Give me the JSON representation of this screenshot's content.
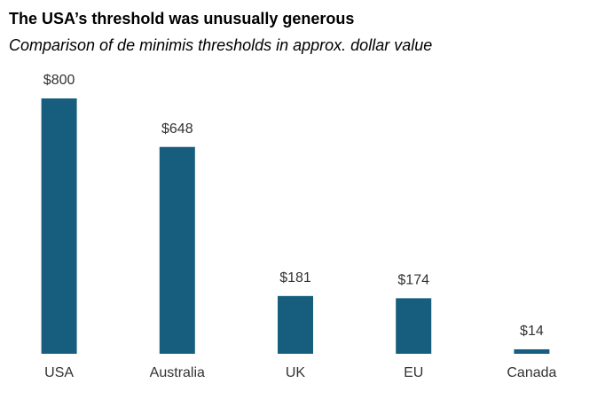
{
  "chart_data": {
    "type": "bar",
    "title": "The USA’s threshold was unusually generous",
    "subtitle": "Comparison of de minimis thresholds in approx. dollar value",
    "categories": [
      "USA",
      "Australia",
      "UK",
      "EU",
      "Canada"
    ],
    "values": [
      800,
      648,
      181,
      174,
      14
    ],
    "value_labels": [
      "$800",
      "$648",
      "$181",
      "$174",
      "$14"
    ],
    "color": "#175e7e"
  }
}
